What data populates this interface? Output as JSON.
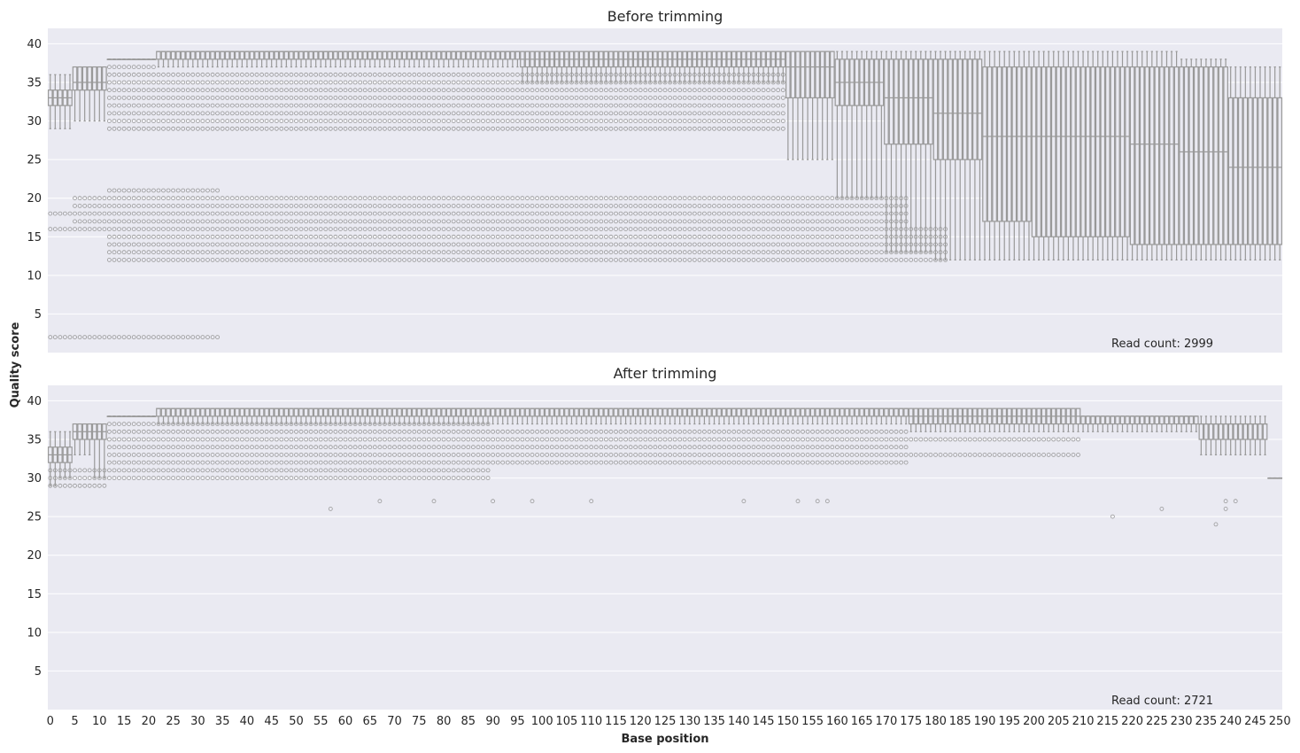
{
  "figure": {
    "ylabel": "Quality score",
    "xlabel": "Base position"
  },
  "chart_data": [
    {
      "type": "box",
      "title": "Before trimming",
      "annotation": "Read count: 2999",
      "ylabel": "Quality score",
      "xlabel": "",
      "xlim": [
        0,
        250
      ],
      "ylim": [
        0,
        42
      ],
      "yticks": [
        5,
        10,
        15,
        20,
        25,
        30,
        35,
        40
      ],
      "grid": true,
      "box_color": "#999999",
      "bg_color": "#eaeaf2",
      "segments": [
        {
          "from": 0,
          "to": 2,
          "whislo": 29,
          "q1": 32,
          "median": 33,
          "q3": 34,
          "whishi": 36
        },
        {
          "from": 2,
          "to": 5,
          "whislo": 29,
          "q1": 32,
          "median": 33,
          "q3": 34,
          "whishi": 36
        },
        {
          "from": 5,
          "to": 8,
          "whislo": 30,
          "q1": 34,
          "median": 35,
          "q3": 37,
          "whishi": 37
        },
        {
          "from": 8,
          "to": 12,
          "whislo": 30,
          "q1": 34,
          "median": 35,
          "q3": 37,
          "whishi": 37
        },
        {
          "from": 12,
          "to": 22,
          "whislo": 38,
          "q1": 38,
          "median": 38,
          "q3": 38,
          "whishi": 38
        },
        {
          "from": 22,
          "to": 96,
          "whislo": 37,
          "q1": 38,
          "median": 39,
          "q3": 39,
          "whishi": 39
        },
        {
          "from": 96,
          "to": 150,
          "whislo": 35,
          "q1": 37,
          "median": 38,
          "q3": 39,
          "whishi": 39
        },
        {
          "from": 150,
          "to": 160,
          "whislo": 25,
          "q1": 33,
          "median": 37,
          "q3": 39,
          "whishi": 39
        },
        {
          "from": 160,
          "to": 170,
          "whislo": 20,
          "q1": 32,
          "median": 35,
          "q3": 38,
          "whishi": 39
        },
        {
          "from": 170,
          "to": 180,
          "whislo": 13,
          "q1": 27,
          "median": 33,
          "q3": 38,
          "whishi": 39
        },
        {
          "from": 180,
          "to": 190,
          "whislo": 12,
          "q1": 25,
          "median": 31,
          "q3": 38,
          "whishi": 39
        },
        {
          "from": 190,
          "to": 200,
          "whislo": 12,
          "q1": 17,
          "median": 28,
          "q3": 37,
          "whishi": 39
        },
        {
          "from": 200,
          "to": 210,
          "whislo": 12,
          "q1": 15,
          "median": 28,
          "q3": 37,
          "whishi": 39
        },
        {
          "from": 210,
          "to": 220,
          "whislo": 12,
          "q1": 15,
          "median": 28,
          "q3": 37,
          "whishi": 39
        },
        {
          "from": 220,
          "to": 230,
          "whislo": 12,
          "q1": 14,
          "median": 27,
          "q3": 37,
          "whishi": 39
        },
        {
          "from": 230,
          "to": 240,
          "whislo": 12,
          "q1": 14,
          "median": 26,
          "q3": 37,
          "whishi": 38
        },
        {
          "from": 240,
          "to": 251,
          "whislo": 12,
          "q1": 14,
          "median": 24,
          "q3": 33,
          "whishi": 37
        }
      ],
      "outlier_bands": [
        {
          "from": 0,
          "to": 35,
          "values": [
            2
          ]
        },
        {
          "from": 0,
          "to": 12,
          "values": [
            16,
            18
          ]
        },
        {
          "from": 5,
          "to": 12,
          "values": [
            20,
            19,
            17
          ]
        },
        {
          "from": 12,
          "to": 175,
          "values": [
            12,
            13,
            14,
            15,
            16,
            17,
            18,
            19,
            20
          ]
        },
        {
          "from": 12,
          "to": 35,
          "values": [
            21
          ]
        },
        {
          "from": 12,
          "to": 150,
          "values": [
            29,
            30,
            31,
            32,
            33,
            34,
            35,
            36
          ]
        },
        {
          "from": 12,
          "to": 22,
          "values": [
            37
          ]
        },
        {
          "from": 175,
          "to": 183,
          "values": [
            12,
            13,
            14,
            15,
            16
          ]
        }
      ]
    },
    {
      "type": "box",
      "title": "After trimming",
      "annotation": "Read count: 2721",
      "ylabel": "Quality score",
      "xlabel": "Base position",
      "xlim": [
        0,
        250
      ],
      "ylim": [
        0,
        42
      ],
      "yticks": [
        5,
        10,
        15,
        20,
        25,
        30,
        35,
        40
      ],
      "xticks": [
        0,
        5,
        10,
        15,
        20,
        25,
        30,
        35,
        40,
        45,
        50,
        55,
        60,
        65,
        70,
        75,
        80,
        85,
        90,
        95,
        100,
        105,
        110,
        115,
        120,
        125,
        130,
        135,
        140,
        145,
        150,
        155,
        160,
        165,
        170,
        175,
        180,
        185,
        190,
        195,
        200,
        205,
        210,
        215,
        220,
        225,
        230,
        235,
        240,
        245,
        250
      ],
      "grid": true,
      "box_color": "#999999",
      "bg_color": "#eaeaf2",
      "segments": [
        {
          "from": 0,
          "to": 2,
          "whislo": 29,
          "q1": 32,
          "median": 33,
          "q3": 34,
          "whishi": 36
        },
        {
          "from": 2,
          "to": 5,
          "whislo": 30,
          "q1": 32,
          "median": 33,
          "q3": 34,
          "whishi": 36
        },
        {
          "from": 5,
          "to": 9,
          "whislo": 33,
          "q1": 35,
          "median": 36,
          "q3": 37,
          "whishi": 37
        },
        {
          "from": 9,
          "to": 12,
          "whislo": 30,
          "q1": 35,
          "median": 36,
          "q3": 37,
          "whishi": 37
        },
        {
          "from": 12,
          "to": 22,
          "whislo": 38,
          "q1": 38,
          "median": 38,
          "q3": 38,
          "whishi": 38
        },
        {
          "from": 22,
          "to": 175,
          "whislo": 37,
          "q1": 38,
          "median": 39,
          "q3": 39,
          "whishi": 39
        },
        {
          "from": 175,
          "to": 210,
          "whislo": 36,
          "q1": 37,
          "median": 38,
          "q3": 39,
          "whishi": 39
        },
        {
          "from": 210,
          "to": 234,
          "whislo": 36,
          "q1": 37,
          "median": 38,
          "q3": 38,
          "whishi": 38
        },
        {
          "from": 234,
          "to": 248,
          "whislo": 33,
          "q1": 35,
          "median": 37,
          "q3": 37,
          "whishi": 38
        },
        {
          "from": 248,
          "to": 251,
          "whislo": 30,
          "q1": 30,
          "median": 30,
          "q3": 30,
          "whishi": 30
        }
      ],
      "outlier_bands": [
        {
          "from": 0,
          "to": 12,
          "values": [
            29,
            30,
            31
          ]
        },
        {
          "from": 12,
          "to": 90,
          "values": [
            30,
            31,
            32,
            33,
            34,
            35,
            36,
            37
          ]
        },
        {
          "from": 90,
          "to": 175,
          "values": [
            32,
            33,
            34,
            35,
            36
          ]
        },
        {
          "from": 175,
          "to": 210,
          "values": [
            33,
            35
          ]
        }
      ],
      "outliers": [
        [
          57,
          26
        ],
        [
          67,
          27
        ],
        [
          78,
          27
        ],
        [
          90,
          27
        ],
        [
          98,
          27
        ],
        [
          110,
          27
        ],
        [
          141,
          27
        ],
        [
          152,
          27
        ],
        [
          156,
          27
        ],
        [
          158,
          27
        ],
        [
          216,
          25
        ],
        [
          226,
          26
        ],
        [
          237,
          24
        ],
        [
          239,
          26
        ],
        [
          239,
          27
        ],
        [
          241,
          27
        ]
      ]
    }
  ]
}
